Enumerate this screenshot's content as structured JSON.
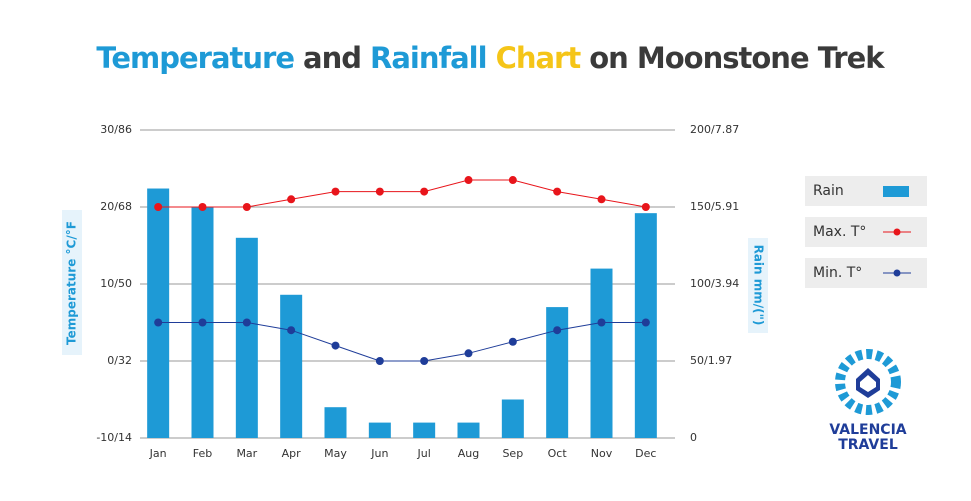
{
  "chart_data": {
    "type": "bar-line",
    "title_parts": [
      {
        "text": "Temperature",
        "color": "#1e9ad6"
      },
      {
        "text": "and",
        "color": "#3a3a3a"
      },
      {
        "text": "Rainfall",
        "color": "#1e9ad6"
      },
      {
        "text": "Chart",
        "color": "#f5c518"
      },
      {
        "text": "on Moonstone Trek",
        "color": "#3a3a3a"
      }
    ],
    "y_label": "Temperature °C/°F",
    "y2_label": "Rain mm/(\")",
    "categories": [
      "Jan",
      "Feb",
      "Mar",
      "Apr",
      "May",
      "Jun",
      "Jul",
      "Aug",
      "Sep",
      "Oct",
      "Nov",
      "Dec"
    ],
    "series": [
      {
        "name": "Rain",
        "kind": "bar",
        "axis": "y2",
        "color": "#1e9ad6",
        "values": [
          162,
          150,
          130,
          93,
          20,
          10,
          10,
          10,
          25,
          85,
          110,
          146
        ]
      },
      {
        "name": "Max. T°",
        "kind": "line",
        "color": "#e8151b",
        "values": [
          20,
          20,
          20,
          21,
          22,
          22,
          22,
          23.5,
          23.5,
          22,
          21,
          20
        ]
      },
      {
        "name": "Min. T°",
        "kind": "line",
        "color": "#1f3d99",
        "values": [
          5,
          5,
          5,
          4,
          2,
          0,
          0,
          1,
          2.5,
          4,
          5,
          5
        ]
      }
    ],
    "ylim": [
      -10,
      30
    ],
    "yticks": [
      {
        "value": -10,
        "label": "-10/14"
      },
      {
        "value": 0,
        "label": "0/32"
      },
      {
        "value": 10,
        "label": "10/50"
      },
      {
        "value": 20,
        "label": "20/68"
      },
      {
        "value": 30,
        "label": "30/86"
      }
    ],
    "y2lim": [
      0,
      200
    ],
    "y2ticks": [
      0,
      {
        "value": 50,
        "label": "50/1.97"
      },
      {
        "value": 100,
        "label": "100/3.94"
      },
      {
        "value": 150,
        "label": "150/5.91"
      },
      {
        "value": 200,
        "label": "200/7.87"
      }
    ],
    "grid": true,
    "legend": "right",
    "logo": [
      "VALENCIA",
      "TRAVEL"
    ]
  }
}
